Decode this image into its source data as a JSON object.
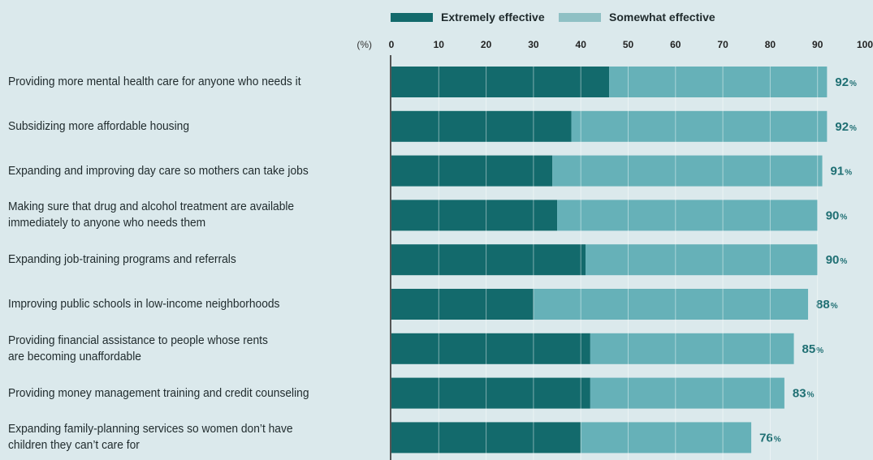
{
  "chart_data": {
    "type": "bar",
    "orientation": "horizontal",
    "stacked": true,
    "unit_label": "(%)",
    "xlim": [
      0,
      100
    ],
    "xticks": [
      "0",
      "10",
      "20",
      "30",
      "40",
      "50",
      "60",
      "70",
      "80",
      "90",
      "100"
    ],
    "grid": true,
    "legend_position": "top",
    "series": [
      {
        "name": "Extremely effective",
        "color": "#136a6c",
        "values": [
          46,
          38,
          34,
          35,
          41,
          30,
          42,
          42,
          40
        ]
      },
      {
        "name": "Somewhat effective",
        "color": "#66b1b8",
        "values": [
          46,
          54,
          57,
          55,
          49,
          58,
          43,
          41,
          36
        ]
      }
    ],
    "categories": [
      "Providing more mental health care for anyone who needs it",
      "Subsidizing more affordable housing",
      "Expanding and improving day care so mothers can take jobs",
      "Making sure that drug and alcohol treatment are available\nimmediately to anyone who needs them",
      "Expanding job-training programs and referrals",
      "Improving public schools in low-income neighborhoods",
      "Providing financial assistance to people whose rents\nare becoming unaffordable",
      "Providing money management training and credit counseling",
      "Expanding family-planning services so women don’t have\nchildren they can’t care for"
    ],
    "totals": [
      92,
      92,
      91,
      90,
      90,
      88,
      85,
      83,
      76
    ],
    "total_suffix": "%",
    "label_color": "#1f6f73",
    "axis_color": "#555555"
  }
}
